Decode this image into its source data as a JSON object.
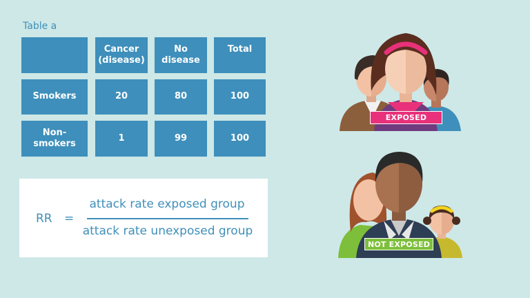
{
  "table": {
    "caption": "Table a",
    "headers": [
      "",
      "Cancer\n(disease)",
      "No\ndisease",
      "Total"
    ],
    "rows": [
      {
        "label": "Smokers",
        "cells": [
          "20",
          "80",
          "100"
        ]
      },
      {
        "label": "Non-\nsmokers",
        "cells": [
          "1",
          "99",
          "100"
        ]
      }
    ]
  },
  "formula": {
    "lhs": "RR",
    "equals": "=",
    "numerator": "attack rate exposed group",
    "denominator": "attack rate unexposed group"
  },
  "groups": {
    "exposed_label": "EXPOSED",
    "not_exposed_label": "NOT EXPOSED"
  },
  "colors": {
    "background": "#cde8e7",
    "cell": "#3e8fbb",
    "text_accent": "#3f8fb9",
    "exposed_badge": "#e8317a",
    "not_exposed_badge": "#7dbf3a"
  }
}
